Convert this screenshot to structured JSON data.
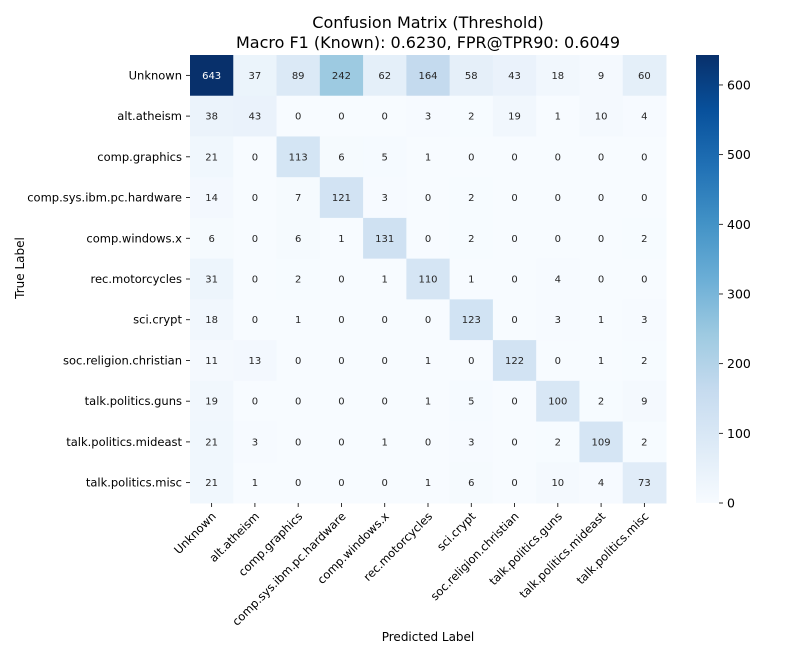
{
  "chart_data": {
    "type": "heatmap",
    "title": "Confusion Matrix (Threshold)",
    "subtitle": "Macro F1 (Known): 0.6230, FPR@TPR90: 0.6049",
    "xlabel": "Predicted Label",
    "ylabel": "True Label",
    "categories": [
      "Unknown",
      "alt.atheism",
      "comp.graphics",
      "comp.sys.ibm.pc.hardware",
      "comp.windows.x",
      "rec.motorcycles",
      "sci.crypt",
      "soc.religion.christian",
      "talk.politics.guns",
      "talk.politics.mideast",
      "talk.politics.misc"
    ],
    "values": [
      [
        643,
        37,
        89,
        242,
        62,
        164,
        58,
        43,
        18,
        9,
        60
      ],
      [
        38,
        43,
        0,
        0,
        0,
        3,
        2,
        19,
        1,
        10,
        4
      ],
      [
        21,
        0,
        113,
        6,
        5,
        1,
        0,
        0,
        0,
        0,
        0
      ],
      [
        14,
        0,
        7,
        121,
        3,
        0,
        2,
        0,
        0,
        0,
        0
      ],
      [
        6,
        0,
        6,
        1,
        131,
        0,
        2,
        0,
        0,
        0,
        2
      ],
      [
        31,
        0,
        2,
        0,
        1,
        110,
        1,
        0,
        4,
        0,
        0
      ],
      [
        18,
        0,
        1,
        0,
        0,
        0,
        123,
        0,
        3,
        1,
        3
      ],
      [
        11,
        13,
        0,
        0,
        0,
        1,
        0,
        122,
        0,
        1,
        2
      ],
      [
        19,
        0,
        0,
        0,
        0,
        1,
        5,
        0,
        100,
        2,
        9
      ],
      [
        21,
        3,
        0,
        0,
        1,
        0,
        3,
        0,
        2,
        109,
        2
      ],
      [
        21,
        1,
        0,
        0,
        0,
        1,
        6,
        0,
        10,
        4,
        73
      ]
    ],
    "colormap": "Blues",
    "colormap_stops": [
      "#f7fbff",
      "#deebf7",
      "#c6dbef",
      "#9ecae1",
      "#6baed6",
      "#4292c6",
      "#2171b5",
      "#08519c",
      "#08306b"
    ],
    "vmin": 0,
    "vmax": 643,
    "colorbar_ticks": [
      0,
      100,
      200,
      300,
      400,
      500,
      600
    ],
    "grid": false,
    "legend": "colorbar-right"
  }
}
